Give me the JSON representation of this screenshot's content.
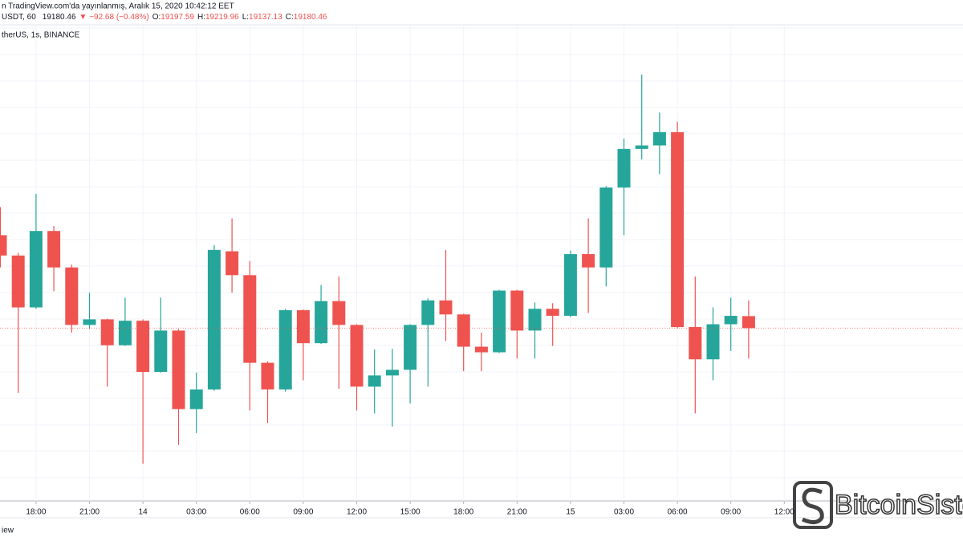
{
  "chart_data": {
    "type": "candlestick",
    "source_note": "n TradingView.com'da yayınlanmış, Aralık 15, 2020 10:42:12 EET",
    "symbol": "USDT, 60",
    "change": "▼ −92.68 (−0.48%)",
    "ohlc_labels": [
      "O:",
      "H:",
      "L:",
      "C:"
    ],
    "exchange_line": "therUS, 1s, BINANCE",
    "footer": "iew",
    "watermark": "BitcoinSisto",
    "up_color": "#26a69a",
    "down_color": "#ef5350",
    "grid": true,
    "ylim": [
      18934,
      19613
    ],
    "categories": [
      null,
      null,
      "18:00",
      null,
      null,
      "21:00",
      null,
      null,
      "14",
      null,
      null,
      "03:00",
      null,
      null,
      "06:00",
      null,
      null,
      "09:00",
      null,
      null,
      "12:00",
      null,
      null,
      "15:00",
      null,
      null,
      "18:00",
      null,
      null,
      "21:00",
      null,
      null,
      "15",
      null,
      null,
      "03:00",
      null,
      null,
      "06:00",
      null,
      null,
      "09:00",
      null,
      null,
      "12:00",
      null,
      null,
      null,
      null,
      null,
      null,
      null,
      null,
      null
    ],
    "open": [
      19313,
      19284,
      19210,
      19319,
      19267,
      19185,
      19193,
      19156,
      19191,
      19118,
      19177,
      19065,
      19093,
      19290,
      19256,
      19131,
      19093,
      19206,
      19159,
      19219,
      19185,
      19097,
      19113,
      19121,
      19185,
      19220,
      19200,
      19154,
      19146,
      19234,
      19177,
      19208,
      19198,
      19286,
      19267,
      19381,
      19436,
      19441,
      19460,
      19182,
      19136,
      19186,
      19197.59,
      null,
      null,
      null,
      null,
      null,
      null,
      null,
      null,
      null,
      null,
      null
    ],
    "high": [
      19353,
      19288,
      19372,
      19326,
      19271,
      19231,
      19194,
      19224,
      19193,
      19224,
      19179,
      19117,
      19299,
      19337,
      19276,
      19133,
      19208,
      19207,
      19242,
      19254,
      19186,
      19150,
      19151,
      19186,
      19223,
      19292,
      19201,
      19174,
      19235,
      19235,
      19217,
      19216,
      19291,
      19337,
      19383,
      19451,
      19542,
      19488,
      19475,
      19254,
      19210,
      19224,
      19219.96,
      null,
      null,
      null,
      null,
      null,
      null,
      null,
      null,
      null,
      null,
      null
    ],
    "low": [
      19267,
      19088,
      19208,
      19233,
      19174,
      19179,
      19097,
      19155,
      18987,
      19117,
      19014,
      19031,
      19091,
      19231,
      19063,
      19045,
      19090,
      19106,
      19158,
      19094,
      19063,
      19059,
      19040,
      19073,
      19097,
      19162,
      19119,
      19119,
      19145,
      19137,
      19137,
      19155,
      19196,
      19202,
      19240,
      19313,
      19421,
      19400,
      19180,
      19059,
      19106,
      19148,
      19137.13,
      null,
      null,
      null,
      null,
      null,
      null,
      null,
      null,
      null,
      null,
      null
    ],
    "close": [
      19284,
      19210,
      19319,
      19267,
      19185,
      19193,
      19156,
      19191,
      19118,
      19177,
      19065,
      19093,
      19292,
      19256,
      19131,
      19093,
      19206,
      19159,
      19219,
      19185,
      19097,
      19113,
      19121,
      19185,
      19220,
      19200,
      19154,
      19146,
      19234,
      19177,
      19208,
      19198,
      19286,
      19267,
      19381,
      19436,
      19441,
      19460,
      19182,
      19136,
      19186,
      19198,
      19180.46,
      null,
      null,
      null,
      null,
      null,
      null,
      null,
      null,
      null,
      null,
      null
    ]
  }
}
